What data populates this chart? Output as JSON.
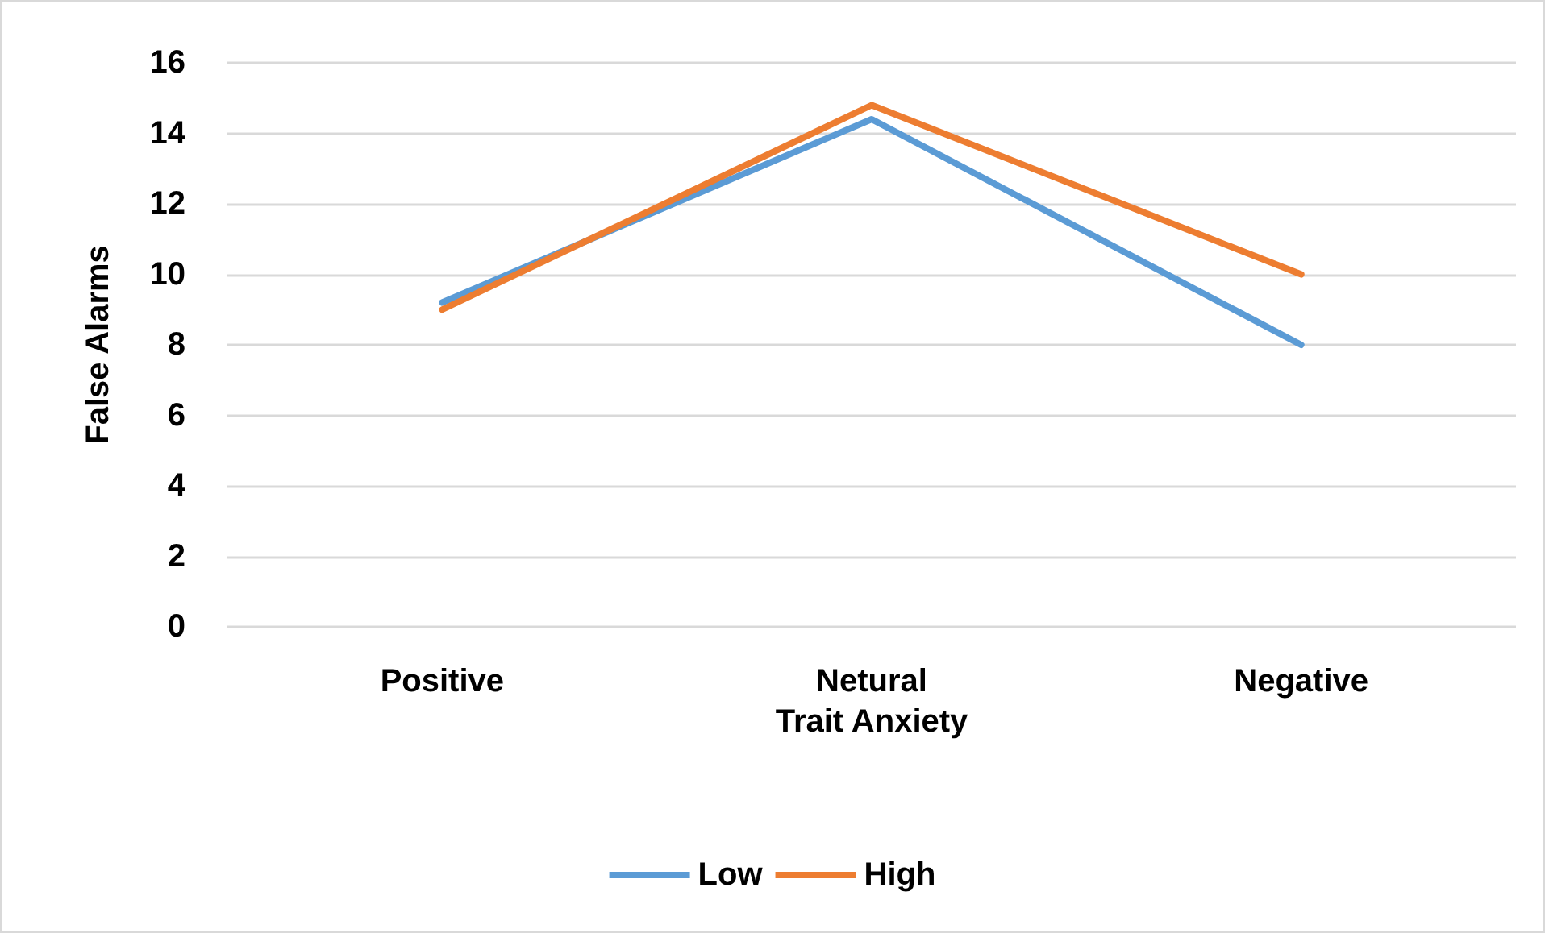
{
  "chart_data": {
    "type": "line",
    "xlabel": "Trait Anxiety",
    "ylabel": "False Alarms",
    "categories": [
      "Positive",
      "Netural",
      "Negative"
    ],
    "series": [
      {
        "name": "Low",
        "color": "#5b9bd5",
        "values": [
          9.2,
          14.4,
          8.0
        ]
      },
      {
        "name": "High",
        "color": "#ed7d31",
        "values": [
          9.0,
          14.8,
          10.0
        ]
      }
    ],
    "ylim": [
      0,
      16
    ],
    "yticks": [
      0,
      2,
      4,
      6,
      8,
      10,
      12,
      14,
      16
    ],
    "grid": "y",
    "legend": "bottom",
    "marker": "none",
    "line_style": "solid"
  }
}
